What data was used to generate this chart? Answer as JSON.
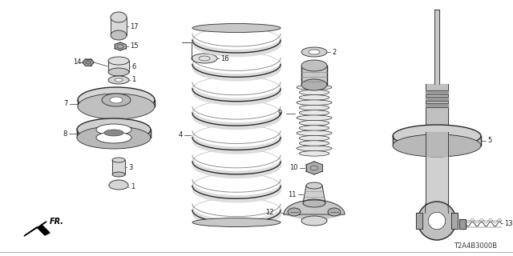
{
  "bg_color": "#ffffff",
  "diagram_code": "T2A4B3000B",
  "line_color": "#2a2a2a",
  "text_color": "#1a1a1a",
  "gray_fill": "#d8d8d8",
  "dark_fill": "#999999",
  "white": "#ffffff"
}
